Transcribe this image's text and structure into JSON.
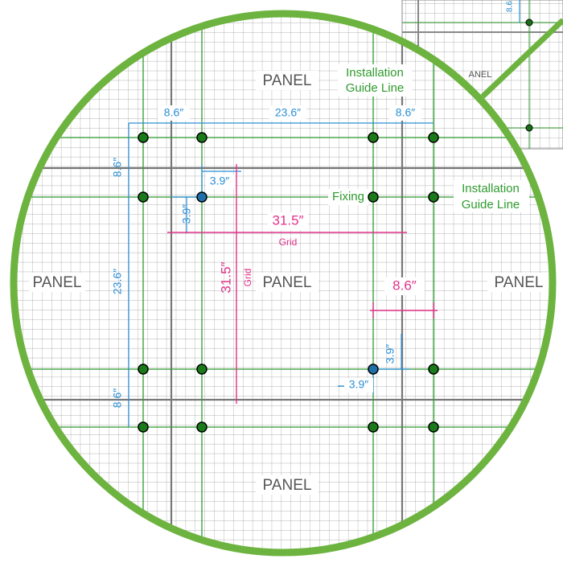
{
  "panels": [
    "PANEL",
    "PANEL",
    "PANEL",
    "PANEL",
    "PANEL"
  ],
  "guide_labels": [
    {
      "line1": "Installation",
      "line2": "Guide Line"
    },
    {
      "line1": "Installation",
      "line2": "Guide Line"
    }
  ],
  "fixing_label": "Fixing",
  "dimensions": [
    "8.6″",
    "23.6″",
    "8.6″",
    "8.6″",
    "23.6″",
    "8.6″",
    "3.9″",
    "3.9″",
    "3.9″",
    "3.9″"
  ],
  "grid_dimensions": [
    "31.5″",
    "31.5″",
    "8.6″"
  ],
  "grid_labels": [
    "Grid",
    "Grid"
  ],
  "inset": {
    "dimension": "8.6",
    "panel": "ANEL"
  }
}
